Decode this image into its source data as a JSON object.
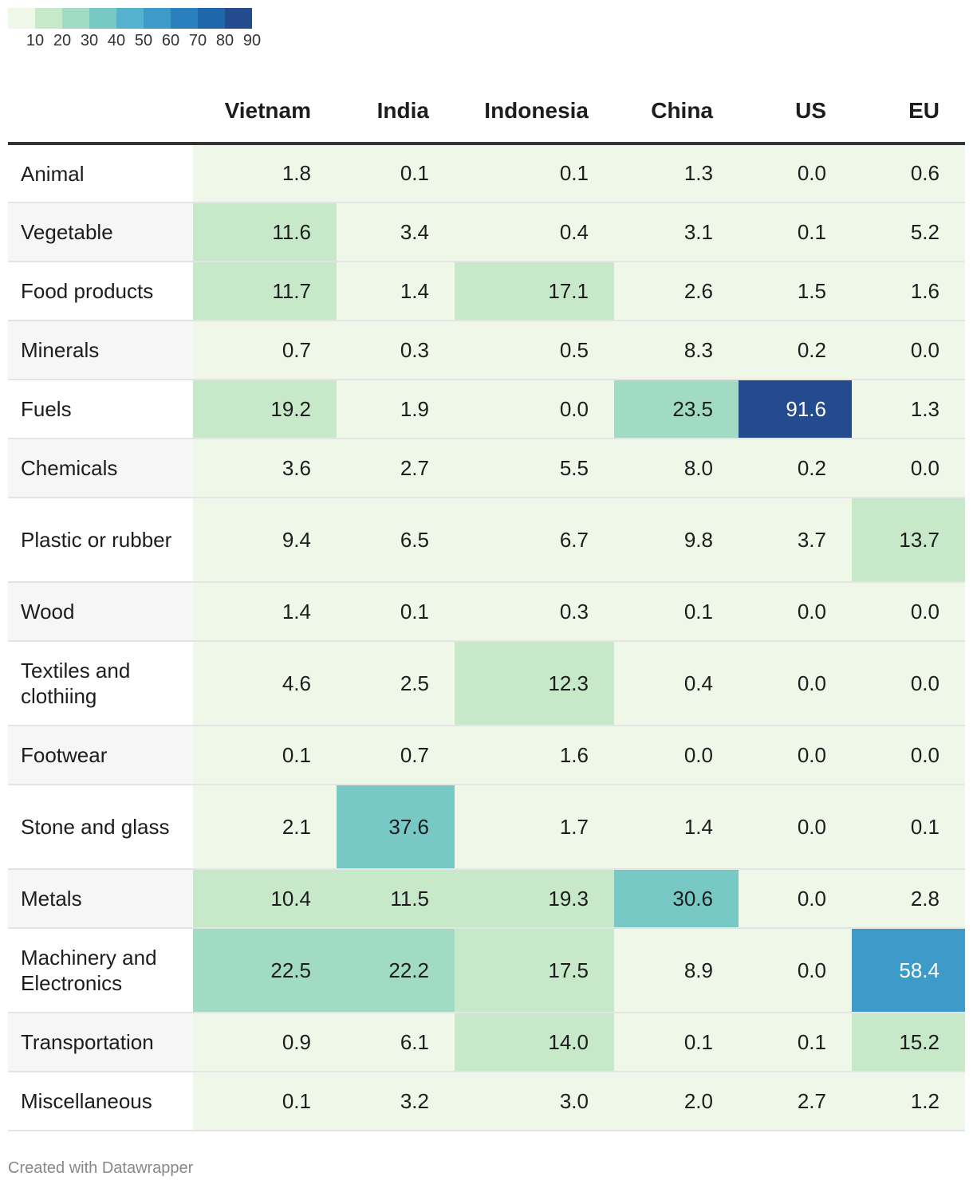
{
  "legend": {
    "colors": [
      "#eef7e8",
      "#c8e8ca",
      "#a2dbc3",
      "#78c8c6",
      "#55b2cf",
      "#3d9ac9",
      "#2980bd",
      "#1f67ab",
      "#234b8e"
    ],
    "ticks": [
      "10",
      "20",
      "30",
      "40",
      "50",
      "60",
      "70",
      "80",
      "90"
    ]
  },
  "chart_data": {
    "type": "table",
    "title": "",
    "columns": [
      "Vietnam",
      "India",
      "Indonesia",
      "China",
      "US",
      "EU"
    ],
    "rows": [
      {
        "label": "Animal",
        "values": [
          "1.8",
          "0.1",
          "0.1",
          "1.3",
          "0.0",
          "0.6"
        ]
      },
      {
        "label": "Vegetable",
        "values": [
          "11.6",
          "3.4",
          "0.4",
          "3.1",
          "0.1",
          "5.2"
        ]
      },
      {
        "label": "Food products",
        "values": [
          "11.7",
          "1.4",
          "17.1",
          "2.6",
          "1.5",
          "1.6"
        ]
      },
      {
        "label": "Minerals",
        "values": [
          "0.7",
          "0.3",
          "0.5",
          "8.3",
          "0.2",
          "0.0"
        ]
      },
      {
        "label": "Fuels",
        "values": [
          "19.2",
          "1.9",
          "0.0",
          "23.5",
          "91.6",
          "1.3"
        ]
      },
      {
        "label": "Chemicals",
        "values": [
          "3.6",
          "2.7",
          "5.5",
          "8.0",
          "0.2",
          "0.0"
        ]
      },
      {
        "label": "Plastic or rubber",
        "values": [
          "9.4",
          "6.5",
          "6.7",
          "9.8",
          "3.7",
          "13.7"
        ]
      },
      {
        "label": "Wood",
        "values": [
          "1.4",
          "0.1",
          "0.3",
          "0.1",
          "0.0",
          "0.0"
        ]
      },
      {
        "label": "Textiles and clothiing",
        "values": [
          "4.6",
          "2.5",
          "12.3",
          "0.4",
          "0.0",
          "0.0"
        ]
      },
      {
        "label": "Footwear",
        "values": [
          "0.1",
          "0.7",
          "1.6",
          "0.0",
          "0.0",
          "0.0"
        ]
      },
      {
        "label": "Stone and glass",
        "values": [
          "2.1",
          "37.6",
          "1.7",
          "1.4",
          "0.0",
          "0.1"
        ]
      },
      {
        "label": "Metals",
        "values": [
          "10.4",
          "11.5",
          "19.3",
          "30.6",
          "0.0",
          "2.8"
        ]
      },
      {
        "label": "Machinery and Electronics",
        "values": [
          "22.5",
          "22.2",
          "17.5",
          "8.9",
          "0.0",
          "58.4"
        ]
      },
      {
        "label": "Transportation",
        "values": [
          "0.9",
          "6.1",
          "14.0",
          "0.1",
          "0.1",
          "15.2"
        ]
      },
      {
        "label": "Miscellaneous",
        "values": [
          "0.1",
          "3.2",
          "3.0",
          "2.0",
          "2.7",
          "1.2"
        ]
      }
    ]
  },
  "footer": "Created with Datawrapper"
}
